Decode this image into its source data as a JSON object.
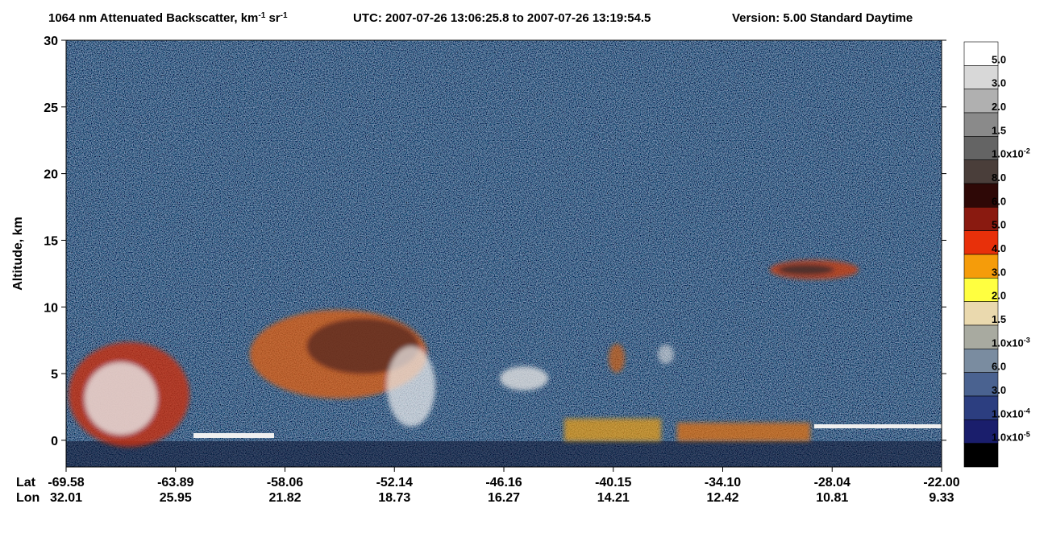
{
  "chart_data": {
    "type": "image",
    "title_segments": [
      {
        "text": "1064 nm Attenuated Backscatter, km"
      },
      {
        "text": "-1",
        "sup": true
      },
      {
        "text": " sr"
      },
      {
        "text": "-1",
        "sup": true
      }
    ],
    "utc": "UTC:  2007-07-26 13:06:25.8  to  2007-07-26 13:19:54.5",
    "version": "Version: 5.00  Standard  Daytime",
    "ylabel": "Altitude, km",
    "ylim": [
      -2,
      30
    ],
    "yticks": [
      0,
      5,
      10,
      15,
      20,
      25,
      30
    ],
    "x_row_labels": [
      "Lat",
      "Lon"
    ],
    "lat": [
      "-69.58",
      "-63.89",
      "-58.06",
      "-52.14",
      "-46.16",
      "-40.15",
      "-34.10",
      "-28.04",
      "-22.00"
    ],
    "lon": [
      "32.01",
      "25.95",
      "21.82",
      "18.73",
      "16.27",
      "14.21",
      "12.42",
      "10.81",
      "9.33"
    ],
    "colorbar": [
      {
        "color": "#ffffff",
        "label": "5.0"
      },
      {
        "color": "#d8d8d8",
        "label": "3.0"
      },
      {
        "color": "#b0b0b0",
        "label": "2.0"
      },
      {
        "color": "#8a8a8a",
        "label": "1.5"
      },
      {
        "color": "#646464",
        "label": "1.0x10",
        "exp": "-2"
      },
      {
        "color": "#4a3e3a",
        "label": "8.0"
      },
      {
        "color": "#2e0806",
        "label": "6.0"
      },
      {
        "color": "#8a1a10",
        "label": "5.0"
      },
      {
        "color": "#e8300a",
        "label": "4.0"
      },
      {
        "color": "#f59c0a",
        "label": "3.0"
      },
      {
        "color": "#ffff40",
        "label": "2.0"
      },
      {
        "color": "#ead9ae",
        "label": "1.5"
      },
      {
        "color": "#a8aaa0",
        "label": "1.0x10",
        "exp": "-3"
      },
      {
        "color": "#7a8ca0",
        "label": "6.0"
      },
      {
        "color": "#4a6290",
        "label": "3.0"
      },
      {
        "color": "#2c3e80",
        "label": "1.0x10",
        "exp": "-4"
      },
      {
        "color": "#1a1e6c",
        "label": "1.0x10",
        "exp": "-5"
      },
      {
        "color": "#000000",
        "label": null
      }
    ]
  }
}
